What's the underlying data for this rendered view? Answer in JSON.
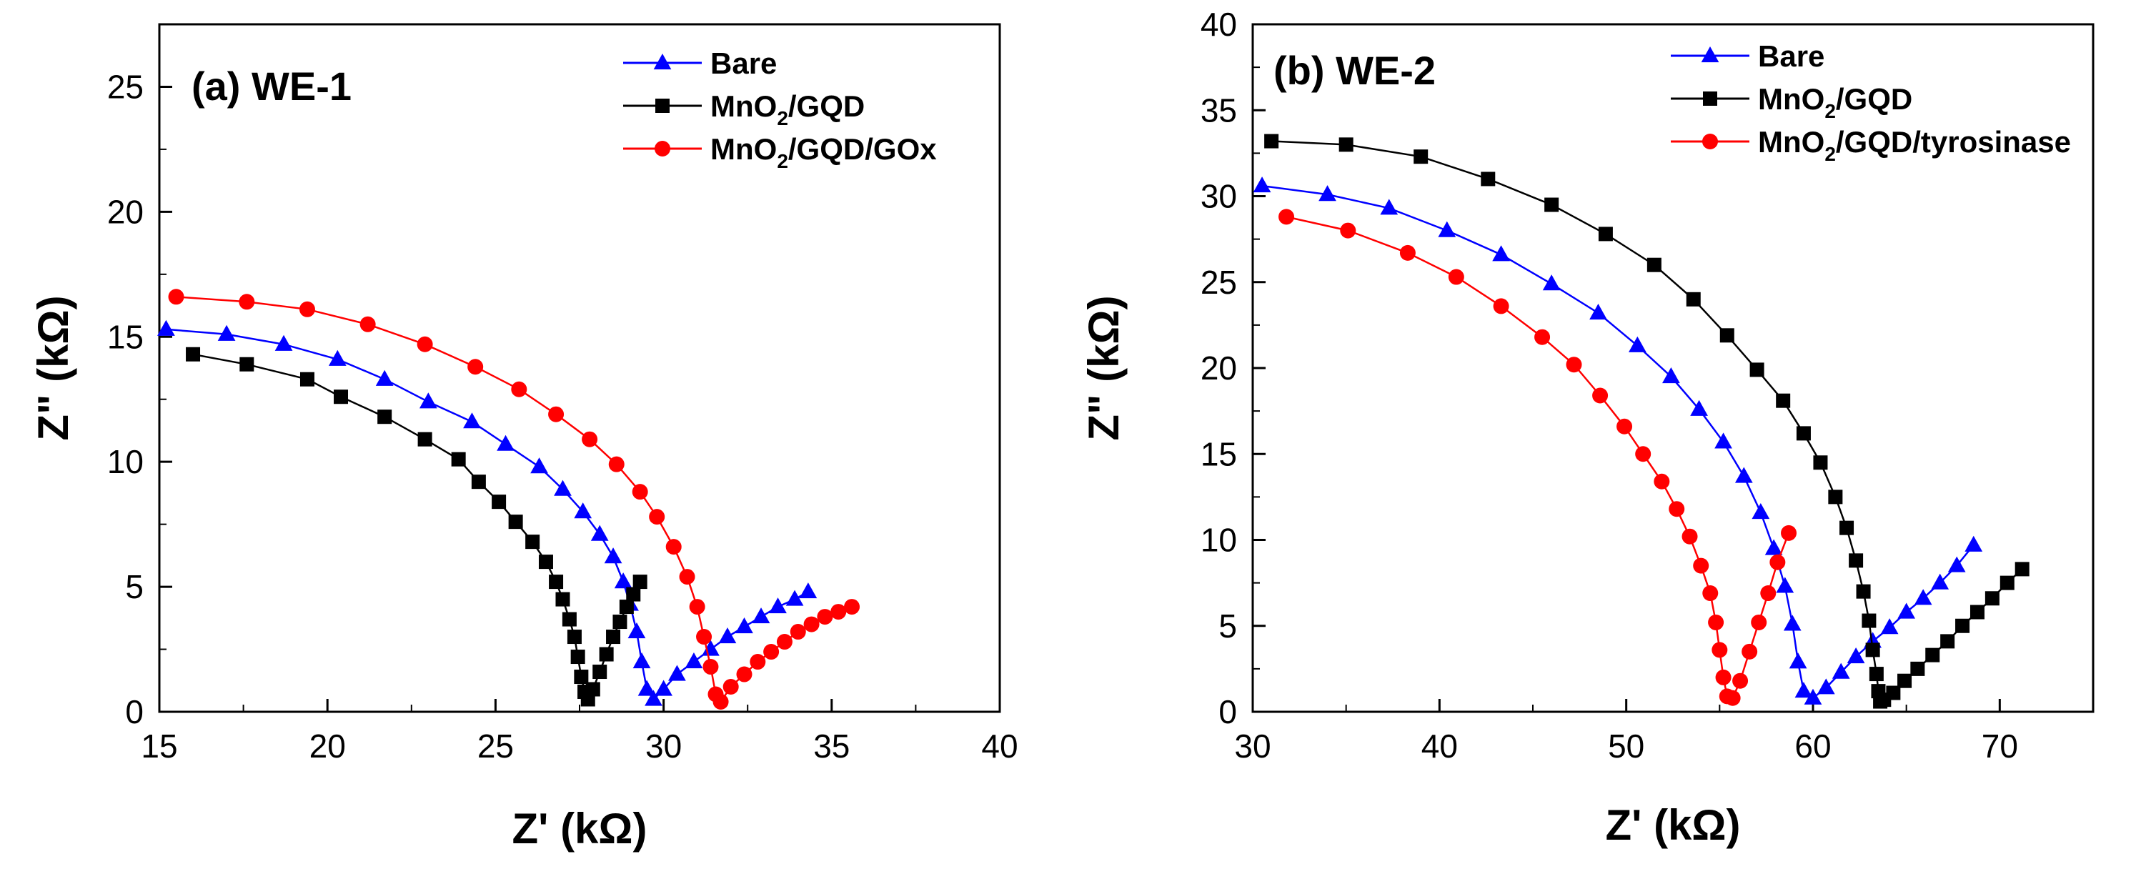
{
  "chart_data": [
    {
      "type": "scatter",
      "title": "(a) WE-1",
      "xlabel": "Z' (kΩ)",
      "ylabel": "Z\" (kΩ)",
      "xlim": [
        15,
        40
      ],
      "ylim": [
        0,
        27.5
      ],
      "xticks": [
        "15",
        "20",
        "25",
        "30",
        "35",
        "40"
      ],
      "yticks": [
        "0",
        "5",
        "10",
        "15",
        "20",
        "25"
      ],
      "xtick_values": [
        15,
        20,
        25,
        30,
        35,
        40
      ],
      "ytick_values": [
        0,
        5,
        10,
        15,
        20,
        25
      ],
      "legend_position": "top-right",
      "series": [
        {
          "name": "Bare",
          "legend_main": "Bare",
          "legend_sub": "",
          "legend_tail": "",
          "color": "#0000ff",
          "marker": "triangle",
          "x": [
            15.2,
            17.0,
            18.7,
            20.3,
            21.7,
            23.0,
            24.3,
            25.3,
            26.3,
            27.0,
            27.6,
            28.1,
            28.5,
            28.8,
            29.0,
            29.2,
            29.35,
            29.5,
            29.7,
            30.0,
            30.4,
            30.9,
            31.4,
            31.9,
            32.4,
            32.9,
            33.4,
            33.9,
            34.3
          ],
          "y": [
            15.3,
            15.1,
            14.7,
            14.1,
            13.3,
            12.4,
            11.6,
            10.7,
            9.8,
            8.9,
            8.0,
            7.1,
            6.2,
            5.2,
            4.3,
            3.2,
            2.0,
            0.9,
            0.5,
            0.9,
            1.5,
            2.0,
            2.5,
            3.0,
            3.4,
            3.8,
            4.2,
            4.5,
            4.8
          ]
        },
        {
          "name": "MnO2/GQD",
          "legend_main": "MnO",
          "legend_sub": "2",
          "legend_tail": "/GQD",
          "color": "#000000",
          "marker": "square",
          "x": [
            16.0,
            17.6,
            19.4,
            20.4,
            21.7,
            22.9,
            23.9,
            24.5,
            25.1,
            25.6,
            26.1,
            26.5,
            26.8,
            27.0,
            27.2,
            27.35,
            27.45,
            27.55,
            27.65,
            27.75,
            27.9,
            28.1,
            28.3,
            28.5,
            28.7,
            28.9,
            29.1,
            29.3
          ],
          "y": [
            14.3,
            13.9,
            13.3,
            12.6,
            11.8,
            10.9,
            10.1,
            9.2,
            8.4,
            7.6,
            6.8,
            6.0,
            5.2,
            4.5,
            3.7,
            3.0,
            2.2,
            1.4,
            0.8,
            0.5,
            0.9,
            1.6,
            2.3,
            3.0,
            3.6,
            4.2,
            4.7,
            5.2
          ]
        },
        {
          "name": "MnO2/GQD/GOx",
          "legend_main": "MnO",
          "legend_sub": "2",
          "legend_tail": "/GQD/GOx",
          "color": "#ff0000",
          "marker": "circle",
          "x": [
            15.5,
            17.6,
            19.4,
            21.2,
            22.9,
            24.4,
            25.7,
            26.8,
            27.8,
            28.6,
            29.3,
            29.8,
            30.3,
            30.7,
            31.0,
            31.2,
            31.4,
            31.55,
            31.7,
            32.0,
            32.4,
            32.8,
            33.2,
            33.6,
            34.0,
            34.4,
            34.8,
            35.2,
            35.6
          ],
          "y": [
            16.6,
            16.4,
            16.1,
            15.5,
            14.7,
            13.8,
            12.9,
            11.9,
            10.9,
            9.9,
            8.8,
            7.8,
            6.6,
            5.4,
            4.2,
            3.0,
            1.8,
            0.7,
            0.4,
            1.0,
            1.5,
            2.0,
            2.4,
            2.8,
            3.2,
            3.5,
            3.8,
            4.0,
            4.2
          ]
        }
      ]
    },
    {
      "type": "scatter",
      "title": "(b) WE-2",
      "xlabel": "Z' (kΩ)",
      "ylabel": "Z\" (kΩ)",
      "xlim": [
        30,
        75
      ],
      "ylim": [
        0,
        40
      ],
      "xticks": [
        "30",
        "40",
        "50",
        "60",
        "70"
      ],
      "yticks": [
        "0",
        "5",
        "10",
        "15",
        "20",
        "25",
        "30",
        "35",
        "40"
      ],
      "xtick_values": [
        30,
        40,
        50,
        60,
        70
      ],
      "ytick_values": [
        0,
        5,
        10,
        15,
        20,
        25,
        30,
        35,
        40
      ],
      "legend_position": "top-right",
      "series": [
        {
          "name": "Bare",
          "legend_main": "Bare",
          "legend_sub": "",
          "legend_tail": "",
          "color": "#0000ff",
          "marker": "triangle",
          "x": [
            30.5,
            34.0,
            37.3,
            40.4,
            43.3,
            46.0,
            48.5,
            50.6,
            52.4,
            53.9,
            55.2,
            56.3,
            57.2,
            57.9,
            58.5,
            58.9,
            59.2,
            59.5,
            60.0,
            60.7,
            61.5,
            62.3,
            63.2,
            64.1,
            65.0,
            65.9,
            66.8,
            67.7,
            68.6
          ],
          "y": [
            30.6,
            30.1,
            29.3,
            28.0,
            26.6,
            24.9,
            23.2,
            21.3,
            19.5,
            17.6,
            15.7,
            13.7,
            11.6,
            9.5,
            7.3,
            5.1,
            2.9,
            1.2,
            0.8,
            1.4,
            2.3,
            3.2,
            4.1,
            4.9,
            5.8,
            6.6,
            7.5,
            8.5,
            9.7
          ]
        },
        {
          "name": "MnO2/GQD",
          "legend_main": "MnO",
          "legend_sub": "2",
          "legend_tail": "/GQD",
          "color": "#000000",
          "marker": "square",
          "x": [
            31.0,
            35.0,
            39.0,
            42.6,
            46.0,
            48.9,
            51.5,
            53.6,
            55.4,
            57.0,
            58.4,
            59.5,
            60.4,
            61.2,
            61.8,
            62.3,
            62.7,
            63.0,
            63.2,
            63.4,
            63.5,
            63.6,
            63.8,
            64.3,
            64.9,
            65.6,
            66.4,
            67.2,
            68.0,
            68.8,
            69.6,
            70.4,
            71.2
          ],
          "y": [
            33.2,
            33.0,
            32.3,
            31.0,
            29.5,
            27.8,
            26.0,
            24.0,
            21.9,
            19.9,
            18.1,
            16.2,
            14.5,
            12.5,
            10.7,
            8.8,
            7.0,
            5.3,
            3.6,
            2.2,
            1.2,
            0.6,
            0.7,
            1.1,
            1.8,
            2.5,
            3.3,
            4.1,
            5.0,
            5.8,
            6.6,
            7.5,
            8.3
          ]
        },
        {
          "name": "MnO2/GQD/tyrosinase",
          "legend_main": "MnO",
          "legend_sub": "2",
          "legend_tail": "/GQD/tyrosinase",
          "color": "#ff0000",
          "marker": "circle",
          "x": [
            31.8,
            35.1,
            38.3,
            40.9,
            43.3,
            45.5,
            47.2,
            48.6,
            49.9,
            50.9,
            51.9,
            52.7,
            53.4,
            54.0,
            54.5,
            54.8,
            55.0,
            55.2,
            55.4,
            55.7,
            56.1,
            56.6,
            57.1,
            57.6,
            58.1,
            58.7
          ],
          "y": [
            28.8,
            28.0,
            26.7,
            25.3,
            23.6,
            21.8,
            20.2,
            18.4,
            16.6,
            15.0,
            13.4,
            11.8,
            10.2,
            8.5,
            6.9,
            5.2,
            3.6,
            2.0,
            0.9,
            0.8,
            1.8,
            3.5,
            5.2,
            6.9,
            8.7,
            10.4
          ]
        }
      ]
    }
  ]
}
